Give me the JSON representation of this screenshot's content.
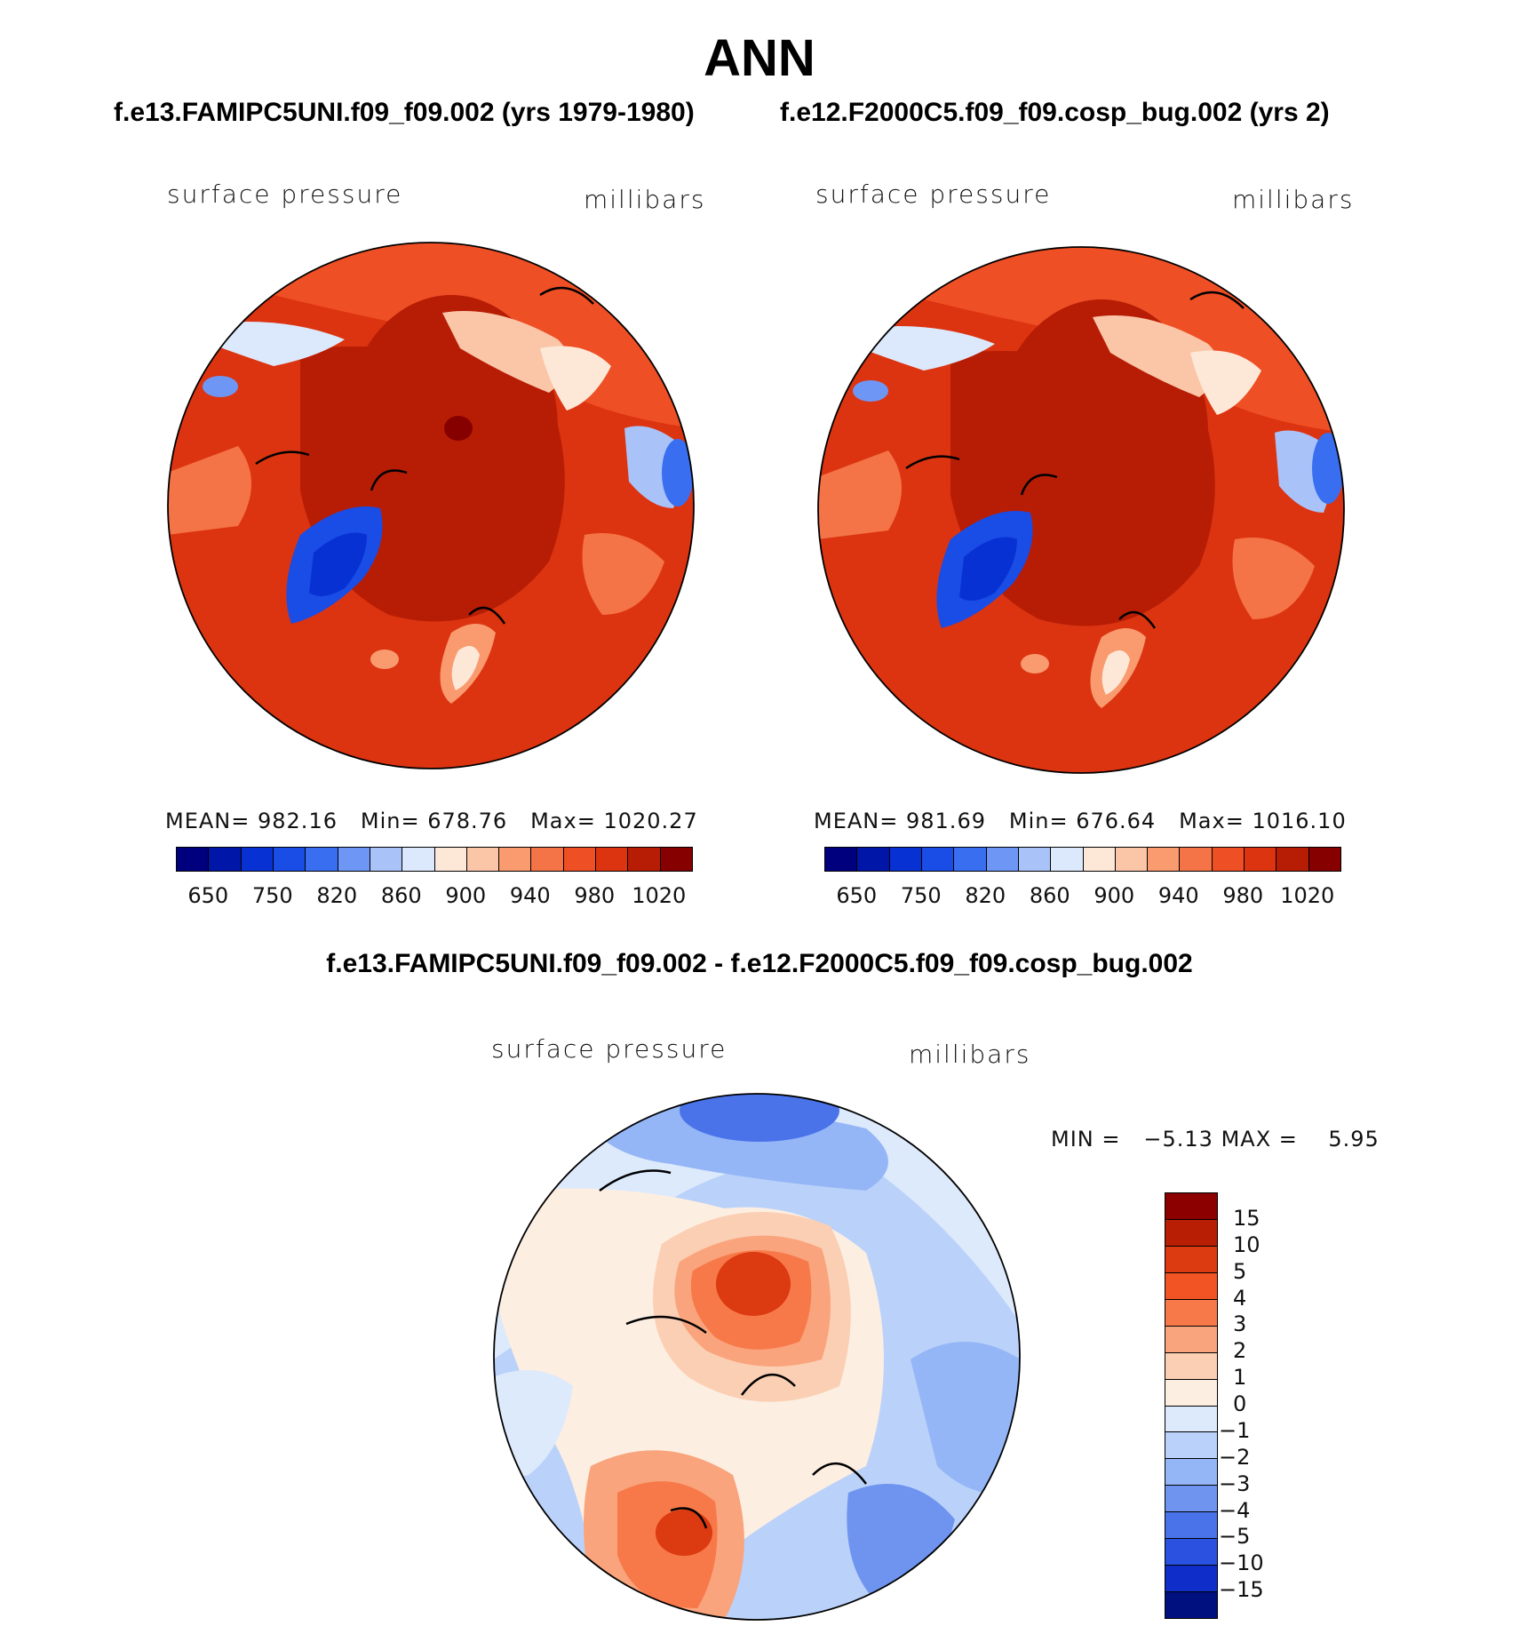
{
  "title": "ANN",
  "case_left": "f.e13.FAMIPC5UNI.f09_f09.002 (yrs 1979-1980)",
  "case_right": "f.e12.F2000C5.f09_f09.cosp_bug.002 (yrs 2)",
  "panels": [
    {
      "variable": "surface pressure",
      "units": "millibars",
      "mean_label": "MEAN=",
      "mean": "982.16",
      "min_label": "Min=",
      "min": "678.76",
      "max_label": "Max=",
      "max": "1020.27"
    },
    {
      "variable": "surface pressure",
      "units": "millibars",
      "mean_label": "MEAN=",
      "mean": "981.69",
      "min_label": "Min=",
      "min": "676.64",
      "max_label": "Max=",
      "max": "1016.10"
    }
  ],
  "colorbar": {
    "colors": [
      "#00007f",
      "#0016a8",
      "#0831d4",
      "#1a4ce6",
      "#3a6ef0",
      "#6e97f5",
      "#a9c3f9",
      "#dce9fc",
      "#fde8d8",
      "#fbc6a8",
      "#f99a6f",
      "#f47447",
      "#ef4f25",
      "#dc3410",
      "#b71d05",
      "#860000"
    ],
    "ticks": [
      "650",
      "750",
      "820",
      "860",
      "900",
      "940",
      "980",
      "1020"
    ]
  },
  "diff": {
    "title": "f.e13.FAMIPC5UNI.f09_f09.002 - f.e12.F2000C5.f09_f09.cosp_bug.002",
    "variable": "surface pressure",
    "units": "millibars",
    "min_label": "MIN =",
    "min": "−5.13",
    "max_label": "MAX =",
    "max": "5.95",
    "colors": [
      "#8c0000",
      "#b81e04",
      "#dc3a10",
      "#f25423",
      "#f7794a",
      "#f9a47c",
      "#fbcfb3",
      "#fdeee2",
      "#ddeafc",
      "#bad2fa",
      "#95b6f6",
      "#6f94f0",
      "#4a73ea",
      "#2a51e0",
      "#0f2ec9",
      "#00107e"
    ],
    "ticks": [
      "15",
      "10",
      "5",
      "4",
      "3",
      "2",
      "1",
      "0",
      "−1",
      "−2",
      "−3",
      "−4",
      "−5",
      "−10",
      "−15"
    ]
  },
  "icon_names": [
    "polar-map-left",
    "polar-map-right",
    "polar-map-diff"
  ]
}
